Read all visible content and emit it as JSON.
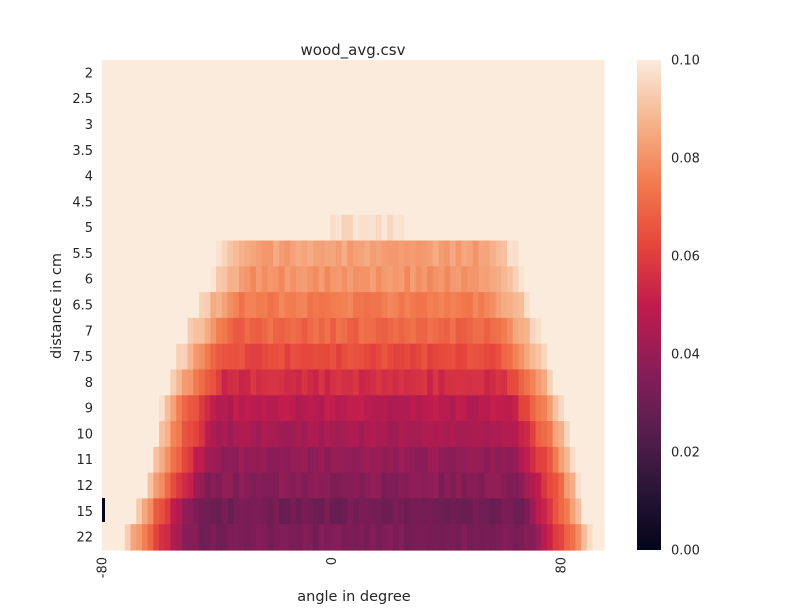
{
  "chart_data": {
    "type": "heatmap",
    "title": "wood_avg.csv",
    "xlabel": "angle in degree",
    "ylabel": "distance in cm",
    "x_tick_labels": [
      "-80",
      "0",
      "80"
    ],
    "x_tick_values": [
      -80,
      0,
      80
    ],
    "x_range": [
      -80,
      95
    ],
    "y_categories": [
      "2",
      "2.5",
      "3",
      "3.5",
      "4",
      "4.5",
      "5",
      "5.5",
      "6",
      "6.5",
      "7",
      "7.5",
      "8",
      "9",
      "10",
      "11",
      "12",
      "15",
      "22"
    ],
    "colorbar": {
      "min": 0.0,
      "max": 0.1,
      "tick_labels": [
        "0.00",
        "0.02",
        "0.04",
        "0.06",
        "0.08",
        "0.10"
      ],
      "tick_values": [
        0.0,
        0.02,
        0.04,
        0.06,
        0.08,
        0.1
      ],
      "colormap": "rocket"
    },
    "saturated_value": 0.1,
    "rows": [
      {
        "distance": "2",
        "left_edge_deg": null,
        "right_edge_deg": null,
        "min_value": 0.1
      },
      {
        "distance": "2.5",
        "left_edge_deg": null,
        "right_edge_deg": null,
        "min_value": 0.1
      },
      {
        "distance": "3",
        "left_edge_deg": null,
        "right_edge_deg": null,
        "min_value": 0.1
      },
      {
        "distance": "3.5",
        "left_edge_deg": null,
        "right_edge_deg": null,
        "min_value": 0.1
      },
      {
        "distance": "4",
        "left_edge_deg": null,
        "right_edge_deg": null,
        "min_value": 0.1
      },
      {
        "distance": "4.5",
        "left_edge_deg": null,
        "right_edge_deg": null,
        "min_value": 0.1
      },
      {
        "distance": "5",
        "left_edge_deg": -2,
        "right_edge_deg": 25,
        "min_value": 0.097
      },
      {
        "distance": "5.5",
        "left_edge_deg": -40,
        "right_edge_deg": 65,
        "min_value": 0.083
      },
      {
        "distance": "6",
        "left_edge_deg": -43,
        "right_edge_deg": 67,
        "min_value": 0.08
      },
      {
        "distance": "6.5",
        "left_edge_deg": -48,
        "right_edge_deg": 70,
        "min_value": 0.075
      },
      {
        "distance": "7",
        "left_edge_deg": -51,
        "right_edge_deg": 73,
        "min_value": 0.07
      },
      {
        "distance": "7.5",
        "left_edge_deg": -54,
        "right_edge_deg": 75,
        "min_value": 0.063
      },
      {
        "distance": "8",
        "left_edge_deg": -56,
        "right_edge_deg": 78,
        "min_value": 0.055
      },
      {
        "distance": "9",
        "left_edge_deg": -60,
        "right_edge_deg": 81,
        "min_value": 0.048
      },
      {
        "distance": "10",
        "left_edge_deg": -61,
        "right_edge_deg": 83,
        "min_value": 0.044
      },
      {
        "distance": "11",
        "left_edge_deg": -63,
        "right_edge_deg": 85,
        "min_value": 0.039
      },
      {
        "distance": "12",
        "left_edge_deg": -65,
        "right_edge_deg": 87,
        "min_value": 0.036
      },
      {
        "distance": "15",
        "left_edge_deg": -69,
        "right_edge_deg": 88,
        "min_value": 0.031
      },
      {
        "distance": "22",
        "left_edge_deg": -72,
        "right_edge_deg": 91,
        "min_value": 0.033
      }
    ]
  }
}
